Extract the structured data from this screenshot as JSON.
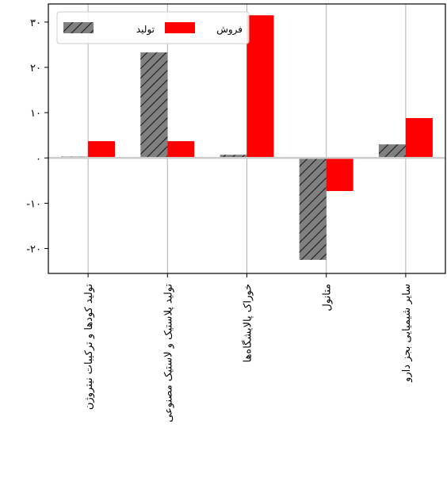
{
  "chart_data": {
    "type": "bar",
    "categories": [
      "تولید کودها و ترکیبات نیتروژن",
      "تولید پلاستیک و لاستیک مصنوعی",
      "خوراک پالایشگاه‌ها",
      "متانول",
      "سایر شیمیایی بجز دارو"
    ],
    "series": [
      {
        "name": "تولید",
        "values": [
          0.3,
          23.3,
          0.7,
          -22.5,
          3.0
        ],
        "color": "#808080",
        "hatch": "diagonal"
      },
      {
        "name": "فروش",
        "values": [
          3.7,
          3.7,
          31.5,
          -7.3,
          8.8
        ],
        "color": "#ff0000",
        "hatch": "none"
      }
    ],
    "yticks": [
      -20,
      -10,
      0,
      10,
      20,
      30
    ],
    "ytick_labels": [
      "-۲۰",
      "-۱۰",
      "۰",
      "۱۰",
      "۲۰",
      "۳۰"
    ],
    "ylim": [
      -25.5,
      34
    ],
    "grid": true,
    "legend": "top"
  }
}
